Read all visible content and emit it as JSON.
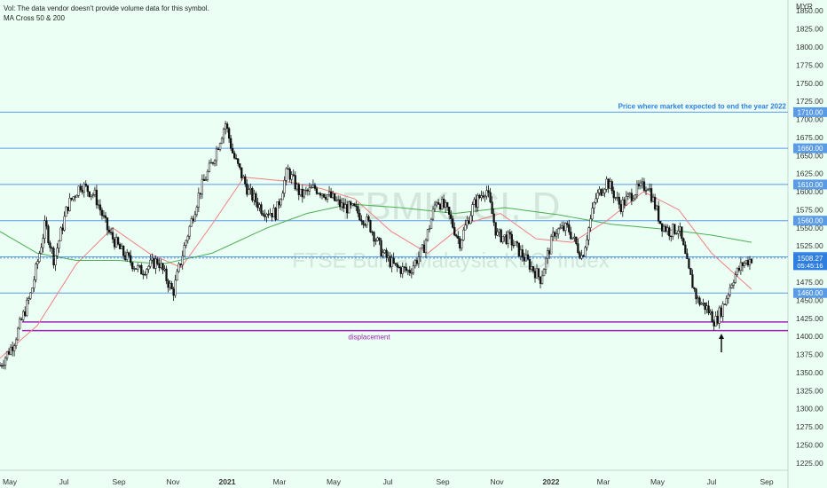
{
  "header": {
    "vol_note": "Vol: The data vendor doesn't provide volume data for this symbol.",
    "ma_note": "MA Cross 50 & 200"
  },
  "watermark": {
    "ticker": "FBMKLCI, D",
    "name": "FTSE Bursa Malaysia KLCI Index"
  },
  "chart_data": {
    "type": "candlestick",
    "currency": "MYR",
    "ylim": [
      1215,
      1865
    ],
    "y_ticks": [
      1225,
      1250,
      1275,
      1300,
      1325,
      1350,
      1375,
      1400,
      1425,
      1450,
      1475,
      1500,
      1525,
      1550,
      1575,
      1600,
      1625,
      1650,
      1675,
      1700,
      1725,
      1750,
      1775,
      1800,
      1825,
      1850
    ],
    "x_ticks": [
      "May",
      "Jul",
      "Sep",
      "Nov",
      "2021",
      "Mar",
      "May",
      "Jul",
      "Sep",
      "Nov",
      "2022",
      "Mar",
      "May",
      "Jul",
      "Sep"
    ],
    "last_price": {
      "value": "1508.27",
      "countdown": "05:45:16"
    },
    "horizontal_levels": [
      {
        "value": 1710,
        "label": "1710.00",
        "color": "#5a9be6"
      },
      {
        "value": 1660,
        "label": "1660.00",
        "color": "#5a9be6"
      },
      {
        "value": 1610,
        "label": "1610.00",
        "color": "#5a9be6"
      },
      {
        "value": 1560,
        "label": "1560.00",
        "color": "#5a9be6"
      },
      {
        "value": 1510,
        "label": "1510.00",
        "color": "#5a9be6"
      },
      {
        "value": 1460,
        "label": "1460.00",
        "color": "#5a9be6"
      }
    ],
    "zone": {
      "upper": 1420,
      "lower": 1408,
      "label": "displacement",
      "color": "#9c27b0"
    },
    "annotation": {
      "text": "Price where market expected to end the year 2022",
      "color": "#2f7fe0"
    },
    "arrow": {
      "at": "Jul 2022",
      "points_to": 1410
    },
    "price_path": [
      {
        "x": "2020-04-20",
        "y": 1360
      },
      {
        "x": "2020-05-05",
        "y": 1390
      },
      {
        "x": "2020-05-25",
        "y": 1460
      },
      {
        "x": "2020-06-10",
        "y": 1555
      },
      {
        "x": "2020-06-20",
        "y": 1505
      },
      {
        "x": "2020-07-05",
        "y": 1580
      },
      {
        "x": "2020-07-20",
        "y": 1610
      },
      {
        "x": "2020-08-05",
        "y": 1595
      },
      {
        "x": "2020-08-20",
        "y": 1545
      },
      {
        "x": "2020-09-05",
        "y": 1515
      },
      {
        "x": "2020-09-25",
        "y": 1490
      },
      {
        "x": "2020-10-15",
        "y": 1505
      },
      {
        "x": "2020-11-01",
        "y": 1460
      },
      {
        "x": "2020-11-15",
        "y": 1530
      },
      {
        "x": "2020-12-01",
        "y": 1600
      },
      {
        "x": "2020-12-15",
        "y": 1640
      },
      {
        "x": "2020-12-30",
        "y": 1695
      },
      {
        "x": "2021-01-08",
        "y": 1650
      },
      {
        "x": "2021-01-25",
        "y": 1600
      },
      {
        "x": "2021-02-10",
        "y": 1575
      },
      {
        "x": "2021-02-25",
        "y": 1570
      },
      {
        "x": "2021-03-10",
        "y": 1630
      },
      {
        "x": "2021-03-25",
        "y": 1595
      },
      {
        "x": "2021-04-10",
        "y": 1605
      },
      {
        "x": "2021-04-25",
        "y": 1595
      },
      {
        "x": "2021-05-10",
        "y": 1580
      },
      {
        "x": "2021-05-25",
        "y": 1575
      },
      {
        "x": "2021-06-10",
        "y": 1555
      },
      {
        "x": "2021-06-25",
        "y": 1515
      },
      {
        "x": "2021-07-10",
        "y": 1495
      },
      {
        "x": "2021-07-25",
        "y": 1490
      },
      {
        "x": "2021-08-10",
        "y": 1520
      },
      {
        "x": "2021-08-25",
        "y": 1590
      },
      {
        "x": "2021-09-05",
        "y": 1575
      },
      {
        "x": "2021-09-20",
        "y": 1530
      },
      {
        "x": "2021-10-05",
        "y": 1580
      },
      {
        "x": "2021-10-20",
        "y": 1605
      },
      {
        "x": "2021-11-01",
        "y": 1540
      },
      {
        "x": "2021-11-15",
        "y": 1535
      },
      {
        "x": "2021-12-01",
        "y": 1510
      },
      {
        "x": "2021-12-20",
        "y": 1480
      },
      {
        "x": "2022-01-05",
        "y": 1545
      },
      {
        "x": "2022-01-20",
        "y": 1550
      },
      {
        "x": "2022-02-05",
        "y": 1510
      },
      {
        "x": "2022-02-20",
        "y": 1590
      },
      {
        "x": "2022-03-05",
        "y": 1615
      },
      {
        "x": "2022-03-20",
        "y": 1580
      },
      {
        "x": "2022-04-05",
        "y": 1600
      },
      {
        "x": "2022-04-20",
        "y": 1610
      },
      {
        "x": "2022-05-05",
        "y": 1555
      },
      {
        "x": "2022-05-15",
        "y": 1545
      },
      {
        "x": "2022-05-25",
        "y": 1550
      },
      {
        "x": "2022-06-05",
        "y": 1490
      },
      {
        "x": "2022-06-15",
        "y": 1450
      },
      {
        "x": "2022-06-25",
        "y": 1440
      },
      {
        "x": "2022-07-05",
        "y": 1420
      },
      {
        "x": "2022-07-15",
        "y": 1445
      },
      {
        "x": "2022-07-25",
        "y": 1480
      },
      {
        "x": "2022-08-05",
        "y": 1500
      },
      {
        "x": "2022-08-15",
        "y": 1508
      }
    ],
    "series": [
      {
        "name": "MA 50",
        "color": "#f08080",
        "points": [
          {
            "x": "2020-04-20",
            "y": 1370
          },
          {
            "x": "2020-06-01",
            "y": 1415
          },
          {
            "x": "2020-07-15",
            "y": 1500
          },
          {
            "x": "2020-08-25",
            "y": 1550
          },
          {
            "x": "2020-10-05",
            "y": 1515
          },
          {
            "x": "2020-11-10",
            "y": 1495
          },
          {
            "x": "2020-12-15",
            "y": 1555
          },
          {
            "x": "2021-01-20",
            "y": 1620
          },
          {
            "x": "2021-03-05",
            "y": 1615
          },
          {
            "x": "2021-04-15",
            "y": 1605
          },
          {
            "x": "2021-05-25",
            "y": 1590
          },
          {
            "x": "2021-07-05",
            "y": 1545
          },
          {
            "x": "2021-08-15",
            "y": 1515
          },
          {
            "x": "2021-09-25",
            "y": 1555
          },
          {
            "x": "2021-11-05",
            "y": 1570
          },
          {
            "x": "2021-12-15",
            "y": 1535
          },
          {
            "x": "2022-01-25",
            "y": 1530
          },
          {
            "x": "2022-03-05",
            "y": 1560
          },
          {
            "x": "2022-04-15",
            "y": 1600
          },
          {
            "x": "2022-05-25",
            "y": 1575
          },
          {
            "x": "2022-07-01",
            "y": 1515
          },
          {
            "x": "2022-08-15",
            "y": 1465
          }
        ]
      },
      {
        "name": "MA 200",
        "color": "#4caf50",
        "points": [
          {
            "x": "2020-04-20",
            "y": 1545
          },
          {
            "x": "2020-06-01",
            "y": 1515
          },
          {
            "x": "2020-07-15",
            "y": 1505
          },
          {
            "x": "2020-09-01",
            "y": 1505
          },
          {
            "x": "2020-10-20",
            "y": 1500
          },
          {
            "x": "2020-12-15",
            "y": 1515
          },
          {
            "x": "2021-02-15",
            "y": 1550
          },
          {
            "x": "2021-04-01",
            "y": 1570
          },
          {
            "x": "2021-05-20",
            "y": 1583
          },
          {
            "x": "2021-07-15",
            "y": 1578
          },
          {
            "x": "2021-09-15",
            "y": 1570
          },
          {
            "x": "2021-11-10",
            "y": 1578
          },
          {
            "x": "2022-01-10",
            "y": 1568
          },
          {
            "x": "2022-03-10",
            "y": 1555
          },
          {
            "x": "2022-05-10",
            "y": 1548
          },
          {
            "x": "2022-07-01",
            "y": 1540
          },
          {
            "x": "2022-08-15",
            "y": 1530
          }
        ]
      }
    ]
  }
}
